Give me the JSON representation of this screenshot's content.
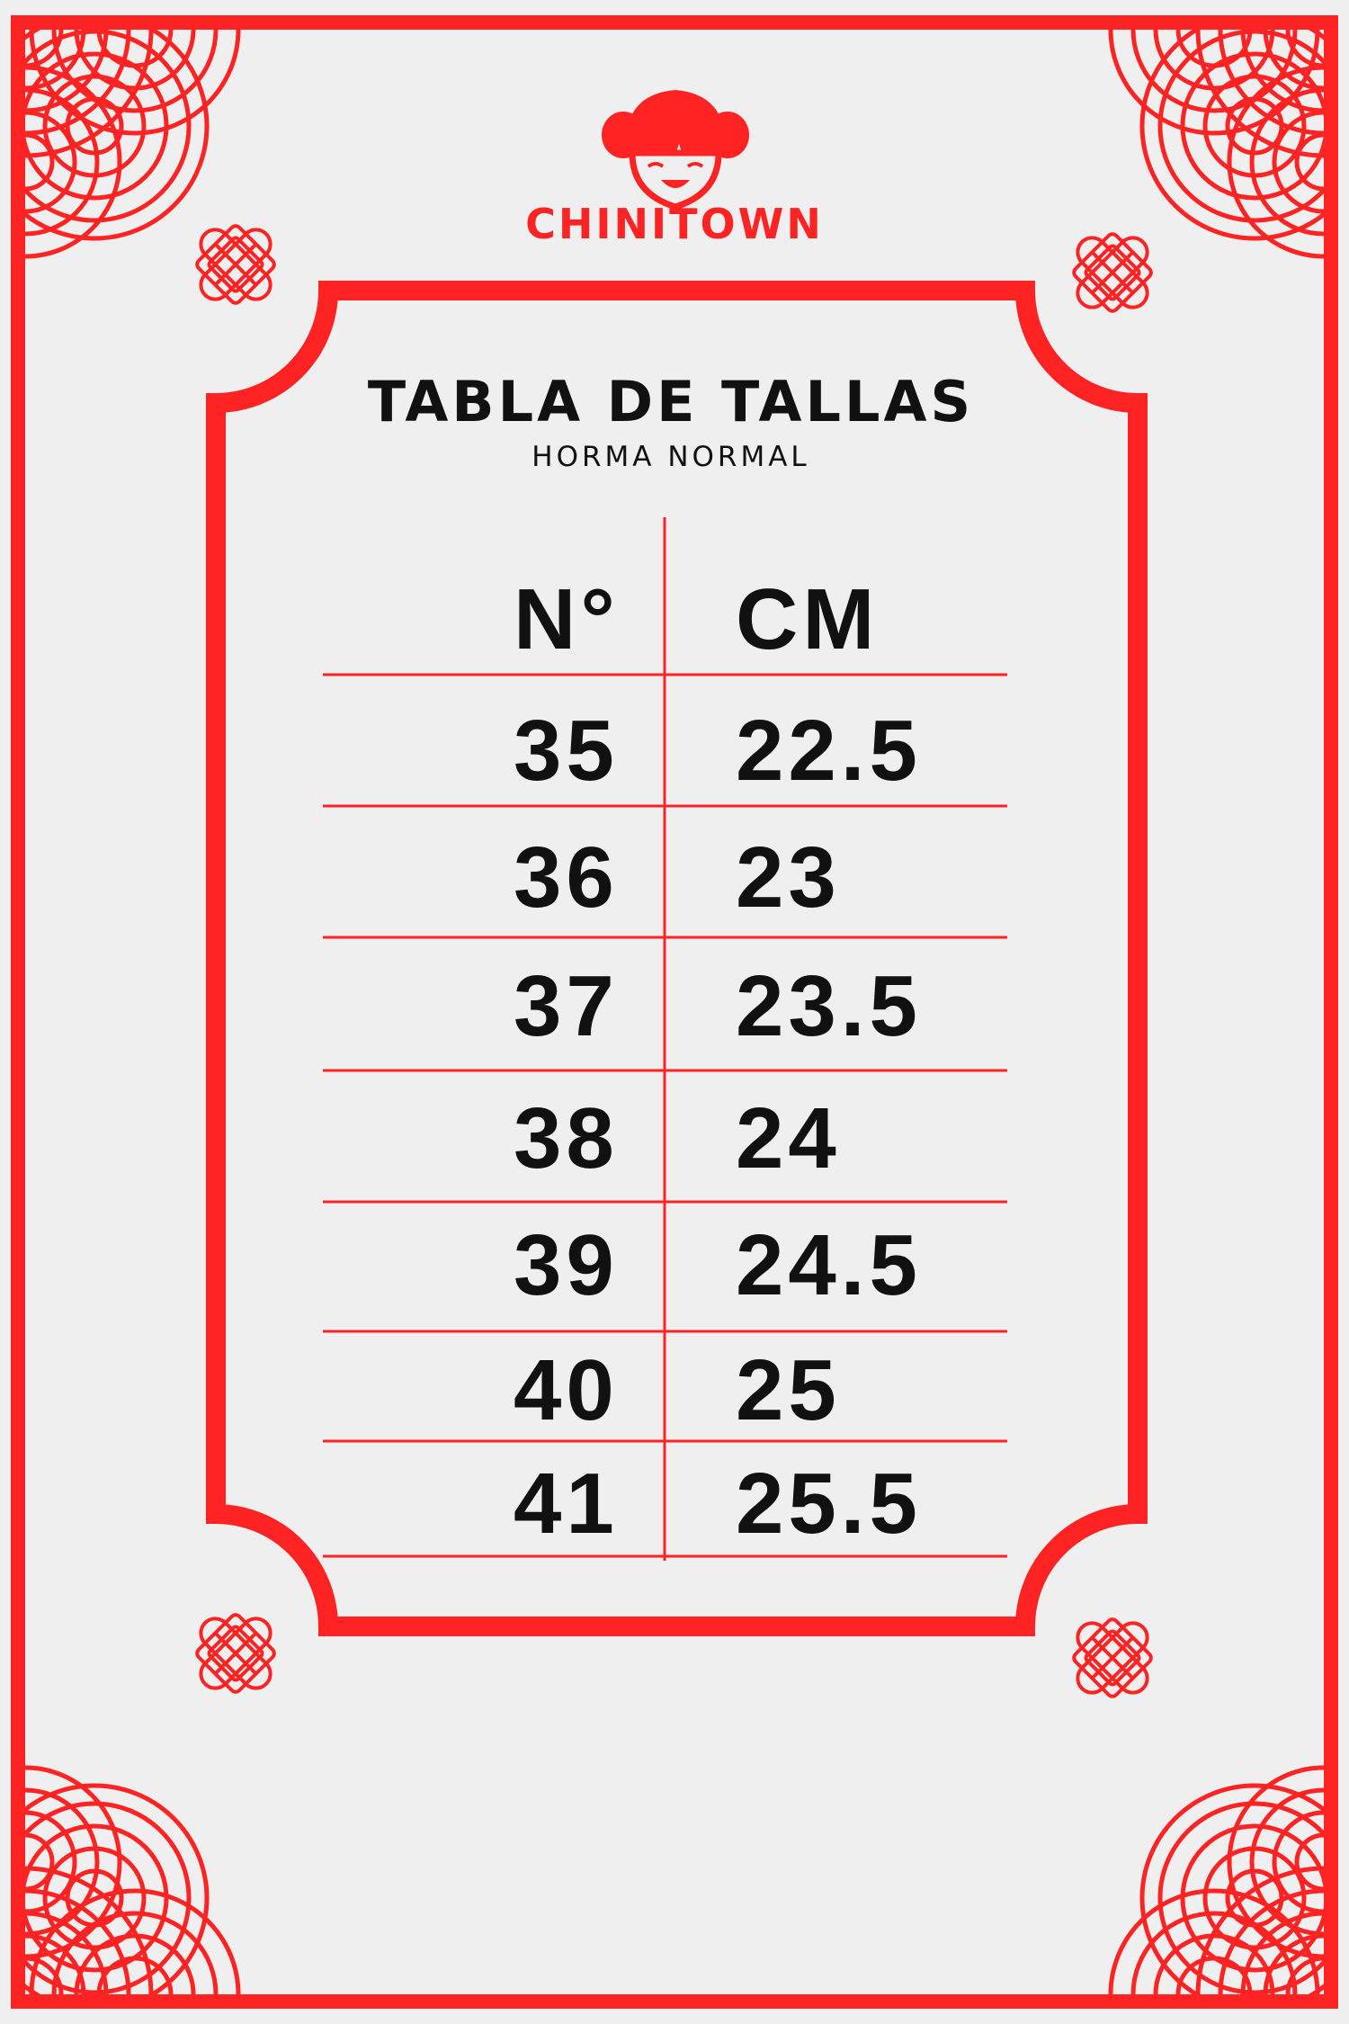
{
  "brand": {
    "name": "CHINITOWN",
    "logo_icon": "smiling-girl-face-icon"
  },
  "colors": {
    "accent": "#ff2323",
    "background": "#efefef",
    "text": "#111111"
  },
  "header": {
    "title": "TABLA DE TALLAS",
    "subtitle": "HORMA NORMAL"
  },
  "table": {
    "columns": [
      "N°",
      "CM"
    ],
    "rows": [
      {
        "size": "35",
        "cm": "22.5"
      },
      {
        "size": "36",
        "cm": "23"
      },
      {
        "size": "37",
        "cm": "23.5"
      },
      {
        "size": "38",
        "cm": "24"
      },
      {
        "size": "39",
        "cm": "24.5"
      },
      {
        "size": "40",
        "cm": "25"
      },
      {
        "size": "41",
        "cm": "25.5"
      }
    ]
  }
}
